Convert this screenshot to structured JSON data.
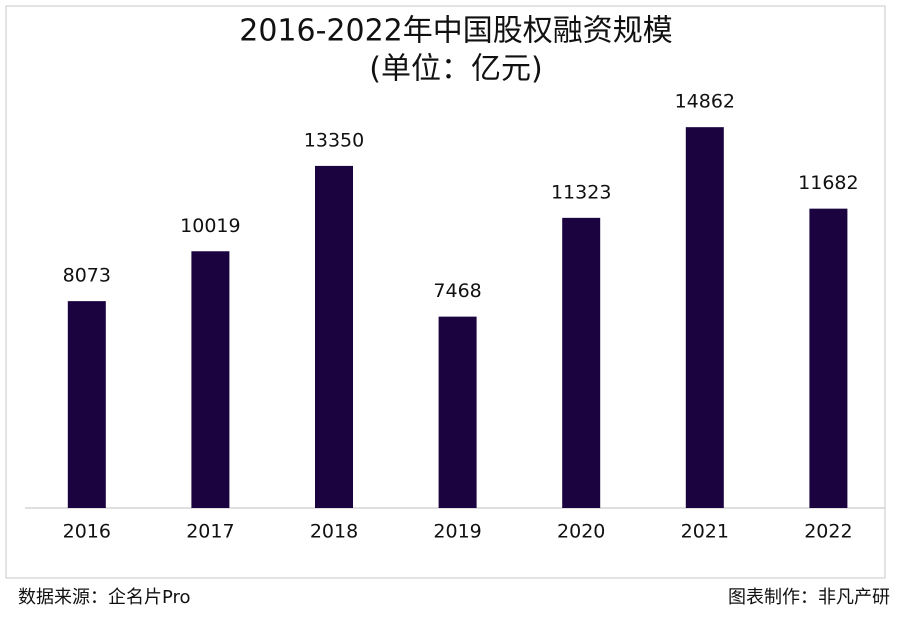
{
  "chart_data": {
    "type": "bar",
    "title": "2016-2022年中国股权融资规模",
    "subtitle": "(单位：亿元)",
    "categories": [
      "2016",
      "2017",
      "2018",
      "2019",
      "2020",
      "2021",
      "2022"
    ],
    "values": [
      8073,
      10019,
      13350,
      7468,
      11323,
      14862,
      11682
    ],
    "color": "#1b0340",
    "ylim": [
      0,
      16000
    ],
    "source": "数据来源：企名片Pro",
    "credit": "图表制作：非凡产研"
  }
}
